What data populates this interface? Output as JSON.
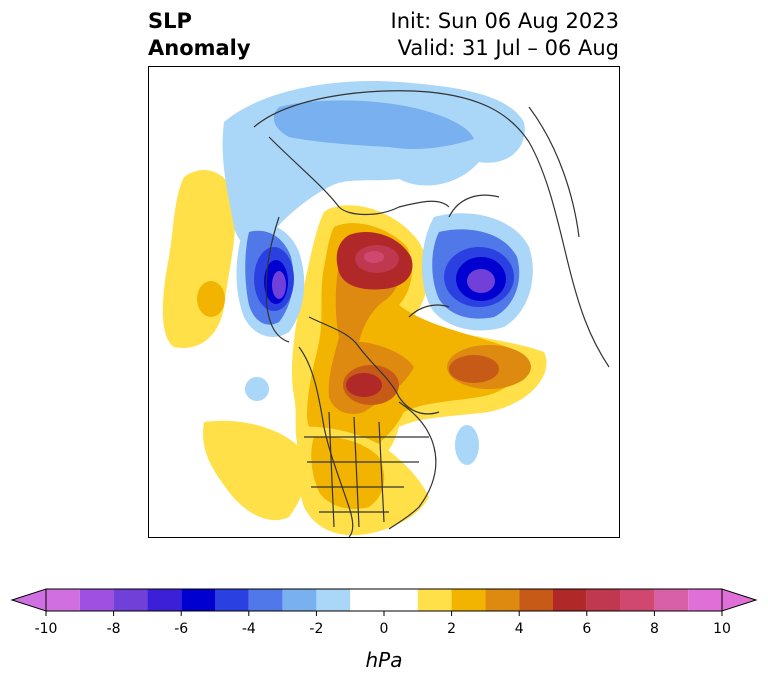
{
  "title": {
    "left_line1": "SLP",
    "left_line2": "Anomaly",
    "right_line1": "Init: Sun 06 Aug 2023",
    "right_line2": "Valid: 31 Jul – 06 Aug"
  },
  "colorbar": {
    "unit": "hPa",
    "tick_labels": [
      "-10",
      "-8",
      "-6",
      "-4",
      "-2",
      "0",
      "2",
      "4",
      "6",
      "8",
      "10"
    ],
    "tick_values": [
      -10,
      -8,
      -6,
      -4,
      -2,
      0,
      2,
      4,
      6,
      8,
      10
    ],
    "bins": [
      {
        "lo": -10,
        "hi": -9,
        "color": "#d070e0"
      },
      {
        "lo": -9,
        "hi": -8,
        "color": "#a050e0"
      },
      {
        "lo": -8,
        "hi": -7,
        "color": "#7040d8"
      },
      {
        "lo": -7,
        "hi": -6,
        "color": "#3c20d8"
      },
      {
        "lo": -6,
        "hi": -5,
        "color": "#0000d0"
      },
      {
        "lo": -5,
        "hi": -4,
        "color": "#2a40e0"
      },
      {
        "lo": -4,
        "hi": -3,
        "color": "#5078e8"
      },
      {
        "lo": -3,
        "hi": -2,
        "color": "#78b0f0"
      },
      {
        "lo": -2,
        "hi": -1,
        "color": "#aad6f8"
      },
      {
        "lo": -1,
        "hi": 1,
        "color": "#ffffff"
      },
      {
        "lo": 1,
        "hi": 2,
        "color": "#ffe048"
      },
      {
        "lo": 2,
        "hi": 3,
        "color": "#f2b400"
      },
      {
        "lo": 3,
        "hi": 4,
        "color": "#de8a10"
      },
      {
        "lo": 4,
        "hi": 5,
        "color": "#c85a18"
      },
      {
        "lo": 5,
        "hi": 6,
        "color": "#b02828"
      },
      {
        "lo": 6,
        "hi": 7,
        "color": "#c03850"
      },
      {
        "lo": 7,
        "hi": 8,
        "color": "#d04870"
      },
      {
        "lo": 8,
        "hi": 9,
        "color": "#d860a8"
      },
      {
        "lo": 9,
        "hi": 10,
        "color": "#e070d8"
      }
    ],
    "extend_low_color": "#d070e0",
    "extend_high_color": "#e070d8"
  }
}
